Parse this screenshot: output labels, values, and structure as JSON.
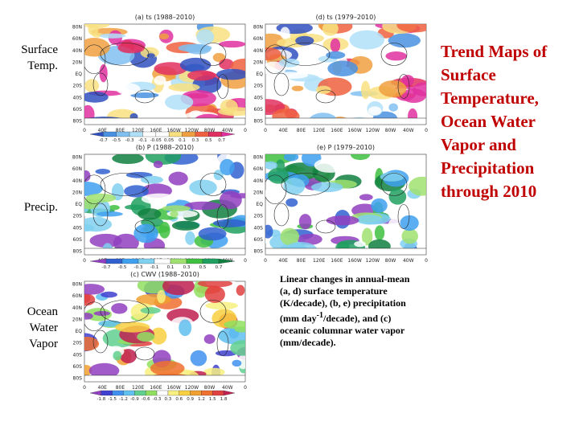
{
  "title": "Trend Maps of Surface Temperature, Ocean Water Vapor and Precipitation through 2010",
  "row_labels": [
    "Surface Temp.",
    "Precip.",
    "Ocean Water Vapor"
  ],
  "latitude_labels": [
    "80N",
    "60N",
    "40N",
    "20N",
    "EQ",
    "20S",
    "40S",
    "60S",
    "80S"
  ],
  "longitude_labels": [
    "0",
    "40E",
    "80E",
    "120E",
    "160E",
    "160W",
    "120W",
    "80W",
    "40W",
    "0"
  ],
  "panels": [
    {
      "title": "(a) ts (1988–2010)"
    },
    {
      "title": "(d) ts (1979–2010)"
    },
    {
      "title": "(b) P (1988–2010)"
    },
    {
      "title": "(e) P (1979–2010)"
    },
    {
      "title": "(c) CWV (1988–2010)"
    }
  ],
  "colorbars": [
    {
      "labels": [
        "-0.7",
        "-0.5",
        "-0.3",
        "-0.1",
        "-0.05",
        "0.05",
        "0.1",
        "0.3",
        "0.5",
        "0.7"
      ]
    },
    {
      "labels": [
        "-0.7",
        "-0.5",
        "-0.3",
        "-0.1",
        "0.1",
        "0.3",
        "0.5",
        "0.7"
      ]
    },
    {
      "labels": [
        "-1.8",
        "-1.5",
        "-1.2",
        "-0.9",
        "-0.6",
        "-0.3",
        "0.3",
        "0.6",
        "0.9",
        "1.2",
        "1.5",
        "1.8"
      ]
    }
  ],
  "caption": {
    "before": "Linear changes in annual-mean (a, d) surface temperature (K/decade), (b, e) precipitation (mm day",
    "superscript": "-1",
    "after": "/decade), and (c) oceanic columnar water vapor (mm/decade)."
  }
}
